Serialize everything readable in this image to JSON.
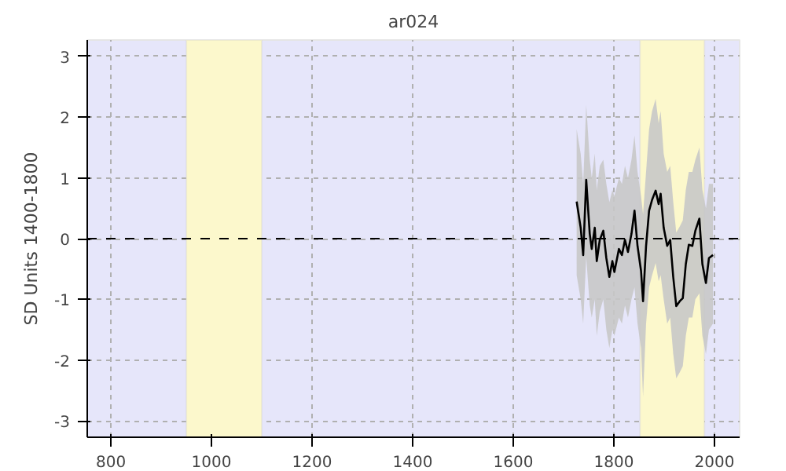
{
  "chart_data": {
    "type": "line",
    "title": "ar024",
    "ylabel": "SD Units 1400-1800",
    "x": [
      1726,
      1734,
      1739,
      1745,
      1752,
      1756,
      1762,
      1766,
      1772,
      1779,
      1785,
      1791,
      1797,
      1801,
      1810,
      1816,
      1822,
      1828,
      1835,
      1841,
      1847,
      1854,
      1858,
      1864,
      1870,
      1876,
      1883,
      1889,
      1893,
      1899,
      1906,
      1912,
      1918,
      1924,
      1931,
      1937,
      1943,
      1949,
      1956,
      1962,
      1970,
      1976,
      1983,
      1989,
      1997
    ],
    "series": [
      {
        "color": "#000000",
        "values": [
          0.61,
          0.18,
          -0.27,
          0.97,
          0.08,
          -0.17,
          0.18,
          -0.37,
          -0.02,
          0.13,
          -0.32,
          -0.63,
          -0.37,
          -0.55,
          -0.17,
          -0.27,
          -0.02,
          -0.22,
          0.08,
          0.46,
          -0.12,
          -0.53,
          -1.03,
          -0.12,
          0.46,
          0.64,
          0.79,
          0.57,
          0.74,
          0.18,
          -0.12,
          -0.02,
          -0.63,
          -1.11,
          -1.03,
          -0.98,
          -0.42,
          -0.1,
          -0.12,
          0.13,
          0.33,
          -0.42,
          -0.73,
          -0.32,
          -0.27
        ],
        "lower": [
          -0.6,
          -1.0,
          -1.4,
          -0.3,
          -1.1,
          -1.3,
          -1.0,
          -1.6,
          -1.2,
          -1.0,
          -1.5,
          -1.8,
          -1.5,
          -1.6,
          -1.3,
          -1.4,
          -1.1,
          -1.3,
          -1.0,
          -0.8,
          -1.4,
          -1.8,
          -2.6,
          -1.4,
          -0.8,
          -0.6,
          -0.4,
          -0.7,
          -0.6,
          -1.0,
          -1.4,
          -1.3,
          -1.9,
          -2.3,
          -2.2,
          -2.1,
          -1.6,
          -1.3,
          -1.3,
          -1.0,
          -0.9,
          -1.6,
          -1.9,
          -1.5,
          -1.4
        ],
        "upper": [
          1.8,
          1.4,
          0.9,
          2.2,
          1.3,
          1.0,
          1.4,
          0.8,
          1.2,
          1.3,
          0.9,
          0.6,
          0.8,
          0.7,
          1.0,
          0.9,
          1.2,
          1.0,
          1.3,
          1.7,
          1.1,
          0.7,
          0.4,
          1.1,
          1.8,
          2.1,
          2.3,
          1.9,
          2.1,
          1.4,
          1.1,
          1.2,
          0.6,
          0.1,
          0.2,
          0.3,
          0.8,
          1.1,
          1.1,
          1.3,
          1.5,
          0.8,
          0.5,
          0.9,
          0.9
        ]
      }
    ],
    "xlim": [
      753,
      2050
    ],
    "ylim": [
      -3.27,
      3.27
    ],
    "xticks": [
      800,
      1000,
      1200,
      1400,
      1600,
      1800,
      2000
    ],
    "yticks": [
      -3,
      -2,
      -1,
      0,
      1,
      2,
      3
    ],
    "grid": true,
    "line_style": "solid",
    "marker": "none",
    "ref_lines": [
      {
        "axis": "y",
        "value": 0,
        "line_style": "dashed",
        "color": "#000000"
      }
    ],
    "bands": [
      {
        "axis": "x",
        "from": 950,
        "to": 1100,
        "color": "#fcf8cc"
      },
      {
        "axis": "x",
        "from": 1852,
        "to": 1980,
        "color": "#fcf8cc"
      }
    ]
  }
}
